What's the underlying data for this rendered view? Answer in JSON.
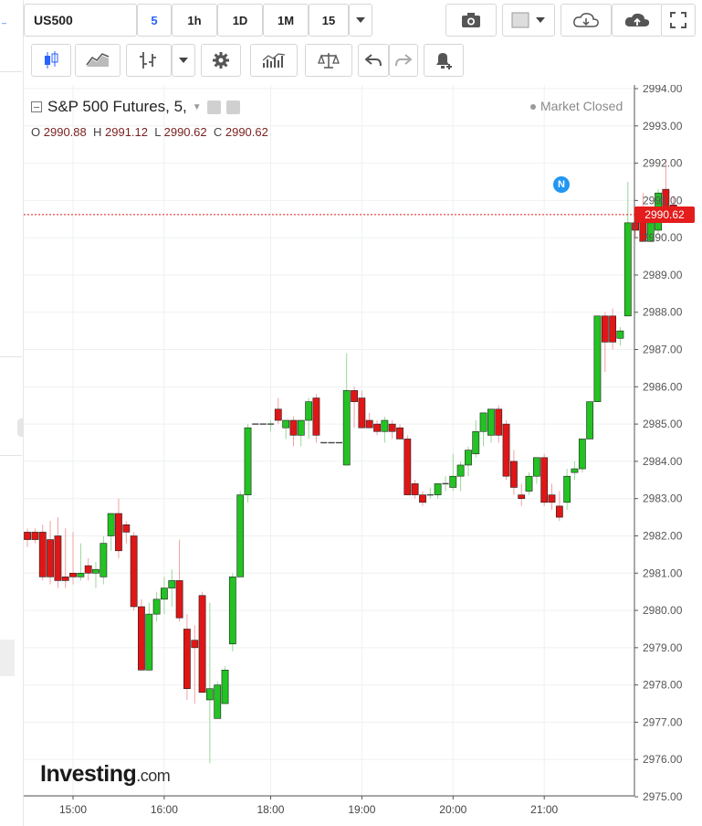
{
  "toolbar": {
    "symbol": "US500",
    "intervals": [
      "5",
      "1h",
      "1D",
      "1M",
      "15"
    ],
    "active_interval": "5"
  },
  "legend": {
    "title": "S&P 500 Futures, 5,",
    "open_label": "O",
    "open": "2990.88",
    "high_label": "H",
    "high": "2991.12",
    "low_label": "L",
    "low": "2990.62",
    "close_label": "C",
    "close": "2990.62",
    "market_status": "Market Closed"
  },
  "price_tag": "2990.62",
  "news_marker": "N",
  "logo": {
    "main": "Investing",
    "suffix": ".com"
  },
  "colors": {
    "up": "#22c322",
    "down": "#e01616",
    "grid": "#eef0f2",
    "last_line": "#e41c1c"
  },
  "chart_data": {
    "type": "candlestick",
    "title": "S&P 500 Futures, 5,",
    "ylim": [
      2974.9,
      2994.1
    ],
    "y_ticks": [
      "2975.00",
      "2976.00",
      "2977.00",
      "2978.00",
      "2979.00",
      "2980.00",
      "2981.00",
      "2982.00",
      "2983.00",
      "2984.00",
      "2985.00",
      "2986.00",
      "2987.00",
      "2988.00",
      "2989.00",
      "2990.00",
      "2991.00",
      "2992.00",
      "2993.00",
      "2994.00"
    ],
    "x_ticks": [
      {
        "label": "15:00",
        "t": 14.916
      },
      {
        "label": "16:00",
        "t": 15.916
      },
      {
        "label": "18:00",
        "t": 17.083
      },
      {
        "label": "19:00",
        "t": 18.083
      },
      {
        "label": "20:00",
        "t": 19.083
      },
      {
        "label": "21:00",
        "t": 20.083
      }
    ],
    "last_price": 2990.62,
    "candles": [
      {
        "t": 14.416,
        "o": 2982.1,
        "h": 2982.2,
        "l": 2981.7,
        "c": 2981.9
      },
      {
        "t": 14.5,
        "o": 2982.1,
        "h": 2982.2,
        "l": 2981.8,
        "c": 2981.9
      },
      {
        "t": 14.583,
        "o": 2982.1,
        "h": 2982.3,
        "l": 2980.8,
        "c": 2980.9
      },
      {
        "t": 14.666,
        "o": 2981.9,
        "h": 2982.4,
        "l": 2980.7,
        "c": 2980.9
      },
      {
        "t": 14.75,
        "o": 2982.0,
        "h": 2982.5,
        "l": 2980.6,
        "c": 2980.8
      },
      {
        "t": 14.833,
        "o": 2980.9,
        "h": 2982.2,
        "l": 2980.6,
        "c": 2980.8
      },
      {
        "t": 14.916,
        "o": 2981.0,
        "h": 2982.1,
        "l": 2980.7,
        "c": 2980.9
      },
      {
        "t": 15.0,
        "o": 2980.9,
        "h": 2981.8,
        "l": 2980.8,
        "c": 2981.0
      },
      {
        "t": 15.083,
        "o": 2981.2,
        "h": 2981.4,
        "l": 2980.8,
        "c": 2981.0
      },
      {
        "t": 15.166,
        "o": 2981.0,
        "h": 2981.3,
        "l": 2980.6,
        "c": 2981.1
      },
      {
        "t": 15.25,
        "o": 2980.9,
        "h": 2982.0,
        "l": 2980.7,
        "c": 2981.8
      },
      {
        "t": 15.333,
        "o": 2982.0,
        "h": 2982.6,
        "l": 2981.6,
        "c": 2982.6
      },
      {
        "t": 15.416,
        "o": 2982.6,
        "h": 2983.0,
        "l": 2981.4,
        "c": 2981.6
      },
      {
        "t": 15.5,
        "o": 2982.3,
        "h": 2982.4,
        "l": 2981.8,
        "c": 2982.1
      },
      {
        "t": 15.583,
        "o": 2982.0,
        "h": 2982.1,
        "l": 2980.0,
        "c": 2980.1
      },
      {
        "t": 15.666,
        "o": 2980.1,
        "h": 2980.3,
        "l": 2978.4,
        "c": 2978.4
      },
      {
        "t": 15.75,
        "o": 2978.4,
        "h": 2980.2,
        "l": 2978.4,
        "c": 2979.9
      },
      {
        "t": 15.833,
        "o": 2979.9,
        "h": 2980.5,
        "l": 2979.7,
        "c": 2980.3
      },
      {
        "t": 15.916,
        "o": 2980.3,
        "h": 2980.9,
        "l": 2979.9,
        "c": 2980.6
      },
      {
        "t": 16.0,
        "o": 2980.6,
        "h": 2981.1,
        "l": 2980.1,
        "c": 2980.8
      },
      {
        "t": 16.083,
        "o": 2980.8,
        "h": 2981.9,
        "l": 2979.7,
        "c": 2979.8
      },
      {
        "t": 16.166,
        "o": 2979.5,
        "h": 2979.9,
        "l": 2977.6,
        "c": 2977.9
      },
      {
        "t": 16.25,
        "o": 2979.2,
        "h": 2979.6,
        "l": 2977.5,
        "c": 2979.0
      },
      {
        "t": 16.333,
        "o": 2980.4,
        "h": 2980.5,
        "l": 2977.8,
        "c": 2977.8
      },
      {
        "t": 16.416,
        "o": 2977.6,
        "h": 2980.2,
        "l": 2975.9,
        "c": 2977.9
      },
      {
        "t": 16.5,
        "o": 2977.1,
        "h": 2978.1,
        "l": 2977.1,
        "c": 2978.0
      },
      {
        "t": 16.583,
        "o": 2977.5,
        "h": 2978.5,
        "l": 2977.5,
        "c": 2978.4
      },
      {
        "t": 16.666,
        "o": 2979.1,
        "h": 2981.0,
        "l": 2978.9,
        "c": 2980.9
      },
      {
        "t": 16.75,
        "o": 2980.9,
        "h": 2983.2,
        "l": 2980.9,
        "c": 2983.1
      },
      {
        "t": 16.833,
        "o": 2983.1,
        "h": 2985.0,
        "l": 2982.9,
        "c": 2984.9
      },
      {
        "t": 16.916,
        "o": 2985.0,
        "h": 2985.0,
        "l": 2985.0,
        "c": 2985.0
      },
      {
        "t": 17.0,
        "o": 2985.0,
        "h": 2985.0,
        "l": 2985.0,
        "c": 2985.0
      },
      {
        "t": 17.083,
        "o": 2985.0,
        "h": 2985.1,
        "l": 2984.8,
        "c": 2985.0
      },
      {
        "t": 17.166,
        "o": 2985.4,
        "h": 2985.7,
        "l": 2985.0,
        "c": 2985.1
      },
      {
        "t": 17.25,
        "o": 2984.9,
        "h": 2985.1,
        "l": 2984.6,
        "c": 2985.1
      },
      {
        "t": 17.333,
        "o": 2985.1,
        "h": 2985.2,
        "l": 2984.4,
        "c": 2984.7
      },
      {
        "t": 17.416,
        "o": 2984.7,
        "h": 2985.1,
        "l": 2984.4,
        "c": 2985.1
      },
      {
        "t": 17.5,
        "o": 2985.1,
        "h": 2985.7,
        "l": 2984.6,
        "c": 2985.6
      },
      {
        "t": 17.583,
        "o": 2985.7,
        "h": 2985.8,
        "l": 2984.5,
        "c": 2984.7
      },
      {
        "t": 17.666,
        "o": 2984.5,
        "h": 2984.5,
        "l": 2984.5,
        "c": 2984.5
      },
      {
        "t": 17.75,
        "o": 2984.5,
        "h": 2984.5,
        "l": 2984.5,
        "c": 2984.5
      },
      {
        "t": 17.833,
        "o": 2984.5,
        "h": 2984.5,
        "l": 2984.5,
        "c": 2984.5
      },
      {
        "t": 17.916,
        "o": 2983.9,
        "h": 2986.9,
        "l": 2983.9,
        "c": 2985.9
      },
      {
        "t": 18.0,
        "o": 2985.9,
        "h": 2986.0,
        "l": 2984.9,
        "c": 2985.6
      },
      {
        "t": 18.083,
        "o": 2985.7,
        "h": 2985.9,
        "l": 2984.9,
        "c": 2984.9
      },
      {
        "t": 18.166,
        "o": 2985.1,
        "h": 2985.3,
        "l": 2984.9,
        "c": 2984.9
      },
      {
        "t": 18.25,
        "o": 2985.0,
        "h": 2985.1,
        "l": 2984.7,
        "c": 2984.8
      },
      {
        "t": 18.333,
        "o": 2984.8,
        "h": 2985.2,
        "l": 2984.5,
        "c": 2985.1
      },
      {
        "t": 18.416,
        "o": 2985.0,
        "h": 2985.1,
        "l": 2984.6,
        "c": 2984.8
      },
      {
        "t": 18.5,
        "o": 2984.9,
        "h": 2985.0,
        "l": 2984.6,
        "c": 2984.6
      },
      {
        "t": 18.583,
        "o": 2984.6,
        "h": 2984.7,
        "l": 2983.1,
        "c": 2983.1
      },
      {
        "t": 18.666,
        "o": 2983.4,
        "h": 2983.5,
        "l": 2983.0,
        "c": 2983.1
      },
      {
        "t": 18.75,
        "o": 2983.1,
        "h": 2983.2,
        "l": 2982.8,
        "c": 2982.9
      },
      {
        "t": 18.833,
        "o": 2983.1,
        "h": 2983.3,
        "l": 2983.0,
        "c": 2983.1
      },
      {
        "t": 18.916,
        "o": 2983.1,
        "h": 2983.4,
        "l": 2983.0,
        "c": 2983.4
      },
      {
        "t": 19.0,
        "o": 2983.4,
        "h": 2983.6,
        "l": 2983.2,
        "c": 2983.4
      },
      {
        "t": 19.083,
        "o": 2983.3,
        "h": 2984.2,
        "l": 2983.2,
        "c": 2983.6
      },
      {
        "t": 19.166,
        "o": 2983.6,
        "h": 2984.0,
        "l": 2983.2,
        "c": 2983.9
      },
      {
        "t": 19.25,
        "o": 2983.9,
        "h": 2984.4,
        "l": 2983.6,
        "c": 2984.3
      },
      {
        "t": 19.333,
        "o": 2984.2,
        "h": 2985.1,
        "l": 2984.1,
        "c": 2984.8
      },
      {
        "t": 19.416,
        "o": 2984.8,
        "h": 2985.3,
        "l": 2984.4,
        "c": 2985.3
      },
      {
        "t": 19.5,
        "o": 2984.7,
        "h": 2985.3,
        "l": 2984.5,
        "c": 2985.4
      },
      {
        "t": 19.583,
        "o": 2985.4,
        "h": 2985.5,
        "l": 2984.5,
        "c": 2984.7
      },
      {
        "t": 19.666,
        "o": 2985.0,
        "h": 2985.1,
        "l": 2983.5,
        "c": 2983.6
      },
      {
        "t": 19.75,
        "o": 2984.0,
        "h": 2984.3,
        "l": 2983.1,
        "c": 2983.3
      },
      {
        "t": 19.833,
        "o": 2983.1,
        "h": 2983.4,
        "l": 2982.8,
        "c": 2983.0
      },
      {
        "t": 19.916,
        "o": 2983.2,
        "h": 2983.7,
        "l": 2983.1,
        "c": 2983.6
      },
      {
        "t": 20.0,
        "o": 2983.6,
        "h": 2984.1,
        "l": 2983.4,
        "c": 2984.1
      },
      {
        "t": 20.083,
        "o": 2984.1,
        "h": 2984.2,
        "l": 2982.8,
        "c": 2982.9
      },
      {
        "t": 20.166,
        "o": 2983.1,
        "h": 2983.4,
        "l": 2982.7,
        "c": 2982.9
      },
      {
        "t": 20.25,
        "o": 2982.8,
        "h": 2983.2,
        "l": 2982.4,
        "c": 2982.5
      },
      {
        "t": 20.333,
        "o": 2982.9,
        "h": 2983.8,
        "l": 2982.7,
        "c": 2983.6
      },
      {
        "t": 20.416,
        "o": 2983.7,
        "h": 2984.0,
        "l": 2983.5,
        "c": 2983.8
      },
      {
        "t": 20.5,
        "o": 2983.8,
        "h": 2984.6,
        "l": 2983.7,
        "c": 2984.6
      },
      {
        "t": 20.583,
        "o": 2984.6,
        "h": 2985.6,
        "l": 2984.6,
        "c": 2985.6
      },
      {
        "t": 20.666,
        "o": 2985.6,
        "h": 2987.9,
        "l": 2985.6,
        "c": 2987.9
      },
      {
        "t": 20.75,
        "o": 2987.9,
        "h": 2988.0,
        "l": 2986.4,
        "c": 2987.2
      },
      {
        "t": 20.833,
        "o": 2987.9,
        "h": 2988.1,
        "l": 2987.0,
        "c": 2987.2
      },
      {
        "t": 20.916,
        "o": 2987.3,
        "h": 2987.6,
        "l": 2987.1,
        "c": 2987.5
      },
      {
        "t": 21.0,
        "o": 2987.9,
        "h": 2991.5,
        "l": 2987.9,
        "c": 2990.4
      },
      {
        "t": 21.083,
        "o": 2990.4,
        "h": 2990.7,
        "l": 2990.0,
        "c": 2990.2
      },
      {
        "t": 21.166,
        "o": 2990.7,
        "h": 2991.2,
        "l": 2989.9,
        "c": 2989.9
      },
      {
        "t": 21.25,
        "o": 2989.9,
        "h": 2990.4,
        "l": 2989.9,
        "c": 2990.4
      },
      {
        "t": 21.333,
        "o": 2990.2,
        "h": 2991.3,
        "l": 2990.1,
        "c": 2991.2
      },
      {
        "t": 21.416,
        "o": 2991.3,
        "h": 2992.1,
        "l": 2990.7,
        "c": 2990.7
      },
      {
        "t": 21.5,
        "o": 2990.88,
        "h": 2991.12,
        "l": 2990.62,
        "c": 2990.62
      }
    ]
  }
}
